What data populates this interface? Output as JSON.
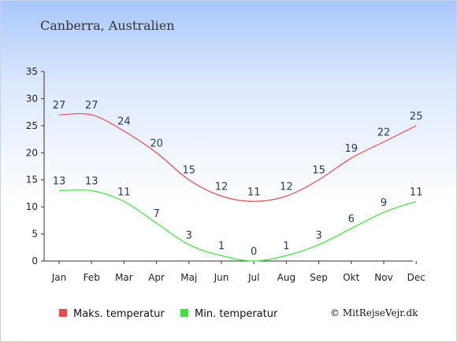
{
  "chart_data": {
    "type": "line",
    "title": "Canberra, Australien",
    "categories": [
      "Jan",
      "Feb",
      "Mar",
      "Apr",
      "Maj",
      "Jun",
      "Jul",
      "Aug",
      "Sep",
      "Okt",
      "Nov",
      "Dec"
    ],
    "y_ticks": [
      0,
      5,
      10,
      15,
      20,
      25,
      30,
      35
    ],
    "ylim": [
      0,
      35
    ],
    "series": [
      {
        "name": "Maks. temperatur",
        "color": "#e8474d",
        "values": [
          27,
          27,
          24,
          20,
          15,
          12,
          11,
          12,
          15,
          19,
          22,
          25
        ]
      },
      {
        "name": "Min. temperatur",
        "color": "#3fe23f",
        "values": [
          13,
          13,
          11,
          7,
          3,
          1,
          0,
          1,
          3,
          6,
          9,
          11
        ]
      }
    ],
    "legend_position": "bottom",
    "grid": false
  },
  "credit": "© MitRejseVejr.dk"
}
